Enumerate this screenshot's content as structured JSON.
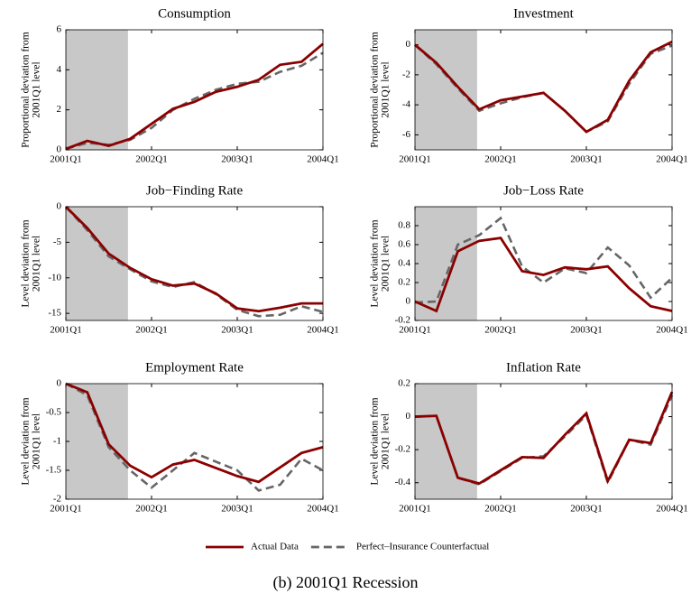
{
  "chart_data": [
    {
      "type": "line",
      "title": "Consumption",
      "ylabel": [
        "Proportional deviation from",
        "2001Q1 level"
      ],
      "x": [
        0,
        1,
        2,
        3,
        4,
        5,
        6,
        7,
        8,
        9,
        10,
        11,
        12
      ],
      "xlim": [
        0,
        12
      ],
      "xticks": [
        {
          "value": 0,
          "label": "2001Q1"
        },
        {
          "value": 4,
          "label": "2002Q1"
        },
        {
          "value": 8,
          "label": "2003Q1"
        },
        {
          "value": 12,
          "label": "2004Q1"
        }
      ],
      "shade_x": [
        0,
        2.9
      ],
      "shade_color": "#c8c8c8",
      "ylim": [
        0,
        6
      ],
      "yticks": [
        0,
        2,
        4,
        6
      ],
      "series": [
        {
          "name": "Actual Data",
          "color": "#8b0000",
          "dash": false,
          "values": [
            0.05,
            0.45,
            0.2,
            0.55,
            1.3,
            2.05,
            2.4,
            2.9,
            3.15,
            3.5,
            4.25,
            4.4,
            5.3
          ]
        },
        {
          "name": "Perfect–Insurance Counterfactual",
          "color": "#666666",
          "dash": true,
          "values": [
            0.05,
            0.35,
            0.25,
            0.5,
            1.1,
            2.0,
            2.55,
            3.0,
            3.3,
            3.4,
            3.9,
            4.2,
            4.85
          ]
        }
      ]
    },
    {
      "type": "line",
      "title": "Investment",
      "ylabel": [
        "Proportional deviation from",
        "2001Q1 level"
      ],
      "x": [
        0,
        1,
        2,
        3,
        4,
        5,
        6,
        7,
        8,
        9,
        10,
        11,
        12
      ],
      "xlim": [
        0,
        12
      ],
      "xticks": [
        {
          "value": 0,
          "label": "2001Q1"
        },
        {
          "value": 4,
          "label": "2002Q1"
        },
        {
          "value": 8,
          "label": "2003Q1"
        },
        {
          "value": 12,
          "label": "2004Q1"
        }
      ],
      "shade_x": [
        0,
        2.9
      ],
      "shade_color": "#c8c8c8",
      "ylim": [
        -7,
        1
      ],
      "yticks": [
        -6,
        -4,
        -2,
        0
      ],
      "series": [
        {
          "name": "Actual Data",
          "color": "#8b0000",
          "dash": false,
          "values": [
            0,
            -1.2,
            -2.8,
            -4.3,
            -3.7,
            -3.45,
            -3.2,
            -4.4,
            -5.8,
            -5.0,
            -2.4,
            -0.5,
            0.2
          ]
        },
        {
          "name": "Perfect–Insurance Counterfactual",
          "color": "#666666",
          "dash": true,
          "values": [
            0,
            -1.3,
            -2.9,
            -4.4,
            -3.9,
            -3.5,
            -3.2,
            -4.4,
            -5.8,
            -5.1,
            -2.6,
            -0.6,
            -0.05
          ]
        }
      ]
    },
    {
      "type": "line",
      "title": "Job−Finding Rate",
      "ylabel": [
        "Level deviation from",
        "2001Q1 level"
      ],
      "x": [
        0,
        1,
        2,
        3,
        4,
        5,
        6,
        7,
        8,
        9,
        10,
        11,
        12
      ],
      "xlim": [
        0,
        12
      ],
      "xticks": [
        {
          "value": 0,
          "label": "2001Q1"
        },
        {
          "value": 4,
          "label": "2002Q1"
        },
        {
          "value": 8,
          "label": "2003Q1"
        },
        {
          "value": 12,
          "label": "2004Q1"
        }
      ],
      "shade_x": [
        0,
        2.9
      ],
      "shade_color": "#c8c8c8",
      "ylim": [
        -16,
        0
      ],
      "yticks": [
        -15,
        -10,
        -5,
        0
      ],
      "series": [
        {
          "name": "Actual Data",
          "color": "#8b0000",
          "dash": false,
          "values": [
            0,
            -3,
            -6.6,
            -8.6,
            -10.2,
            -11.1,
            -10.8,
            -12.2,
            -14.3,
            -14.7,
            -14.2,
            -13.6,
            -13.6
          ]
        },
        {
          "name": "Perfect–Insurance Counterfactual",
          "color": "#666666",
          "dash": true,
          "values": [
            0,
            -3.3,
            -7,
            -8.8,
            -10.5,
            -11.3,
            -10.6,
            -12.3,
            -14.5,
            -15.4,
            -15.2,
            -14,
            -14.8
          ]
        }
      ]
    },
    {
      "type": "line",
      "title": "Job−Loss Rate",
      "ylabel": [
        "Level deviation from",
        "2001Q1 level"
      ],
      "x": [
        0,
        1,
        2,
        3,
        4,
        5,
        6,
        7,
        8,
        9,
        10,
        11,
        12
      ],
      "xlim": [
        0,
        12
      ],
      "xticks": [
        {
          "value": 0,
          "label": "2001Q1"
        },
        {
          "value": 4,
          "label": "2002Q1"
        },
        {
          "value": 8,
          "label": "2003Q1"
        },
        {
          "value": 12,
          "label": "2004Q1"
        }
      ],
      "shade_x": [
        0,
        2.9
      ],
      "shade_color": "#c8c8c8",
      "ylim": [
        -0.2,
        1
      ],
      "yticks": [
        -0.2,
        0,
        0.2,
        0.4,
        0.6,
        0.8
      ],
      "series": [
        {
          "name": "Actual Data",
          "color": "#8b0000",
          "dash": false,
          "values": [
            0,
            -0.1,
            0.53,
            0.64,
            0.67,
            0.32,
            0.28,
            0.36,
            0.34,
            0.37,
            0.14,
            -0.05,
            -0.1
          ]
        },
        {
          "name": "Perfect–Insurance Counterfactual",
          "color": "#666666",
          "dash": true,
          "values": [
            -0.01,
            0,
            0.6,
            0.7,
            0.88,
            0.37,
            0.2,
            0.35,
            0.3,
            0.57,
            0.38,
            0.04,
            0.25
          ]
        }
      ]
    },
    {
      "type": "line",
      "title": "Employment Rate",
      "ylabel": [
        "Level deviation from",
        "2001Q1 level"
      ],
      "x": [
        0,
        1,
        2,
        3,
        4,
        5,
        6,
        7,
        8,
        9,
        10,
        11,
        12
      ],
      "xlim": [
        0,
        12
      ],
      "xticks": [
        {
          "value": 0,
          "label": "2001Q1"
        },
        {
          "value": 4,
          "label": "2002Q1"
        },
        {
          "value": 8,
          "label": "2003Q1"
        },
        {
          "value": 12,
          "label": "2004Q1"
        }
      ],
      "shade_x": [
        0,
        2.9
      ],
      "shade_color": "#c8c8c8",
      "ylim": [
        -2,
        0
      ],
      "yticks": [
        -2,
        -1.5,
        -1,
        -0.5,
        0
      ],
      "series": [
        {
          "name": "Actual Data",
          "color": "#8b0000",
          "dash": false,
          "values": [
            0,
            -0.15,
            -1.05,
            -1.42,
            -1.62,
            -1.4,
            -1.32,
            -1.46,
            -1.6,
            -1.7,
            -1.45,
            -1.2,
            -1.1
          ]
        },
        {
          "name": "Perfect–Insurance Counterfactual",
          "color": "#666666",
          "dash": true,
          "values": [
            0,
            -0.2,
            -1.1,
            -1.5,
            -1.8,
            -1.5,
            -1.2,
            -1.35,
            -1.5,
            -1.85,
            -1.75,
            -1.3,
            -1.5
          ]
        }
      ]
    },
    {
      "type": "line",
      "title": "Inflation Rate",
      "ylabel": [
        "Level deviation from",
        "2001Q1 level"
      ],
      "x": [
        0,
        1,
        2,
        3,
        4,
        5,
        6,
        7,
        8,
        9,
        10,
        11,
        12
      ],
      "xlim": [
        0,
        12
      ],
      "xticks": [
        {
          "value": 0,
          "label": "2001Q1"
        },
        {
          "value": 4,
          "label": "2002Q1"
        },
        {
          "value": 8,
          "label": "2003Q1"
        },
        {
          "value": 12,
          "label": "2004Q1"
        }
      ],
      "shade_x": [
        0,
        2.9
      ],
      "shade_color": "#c8c8c8",
      "ylim": [
        -0.5,
        0.2
      ],
      "yticks": [
        -0.4,
        -0.2,
        0,
        0.2
      ],
      "series": [
        {
          "name": "Actual Data",
          "color": "#8b0000",
          "dash": false,
          "values": [
            0,
            0.005,
            -0.37,
            -0.405,
            -0.325,
            -0.245,
            -0.25,
            -0.11,
            0.02,
            -0.39,
            -0.14,
            -0.16,
            0.15
          ]
        },
        {
          "name": "Perfect–Insurance Counterfactual",
          "color": "#666666",
          "dash": true,
          "values": [
            0,
            0.005,
            -0.37,
            -0.41,
            -0.33,
            -0.25,
            -0.24,
            -0.12,
            0.01,
            -0.4,
            -0.14,
            -0.17,
            0.13
          ]
        }
      ]
    }
  ],
  "caption": "(b) 2001Q1 Recession"
}
